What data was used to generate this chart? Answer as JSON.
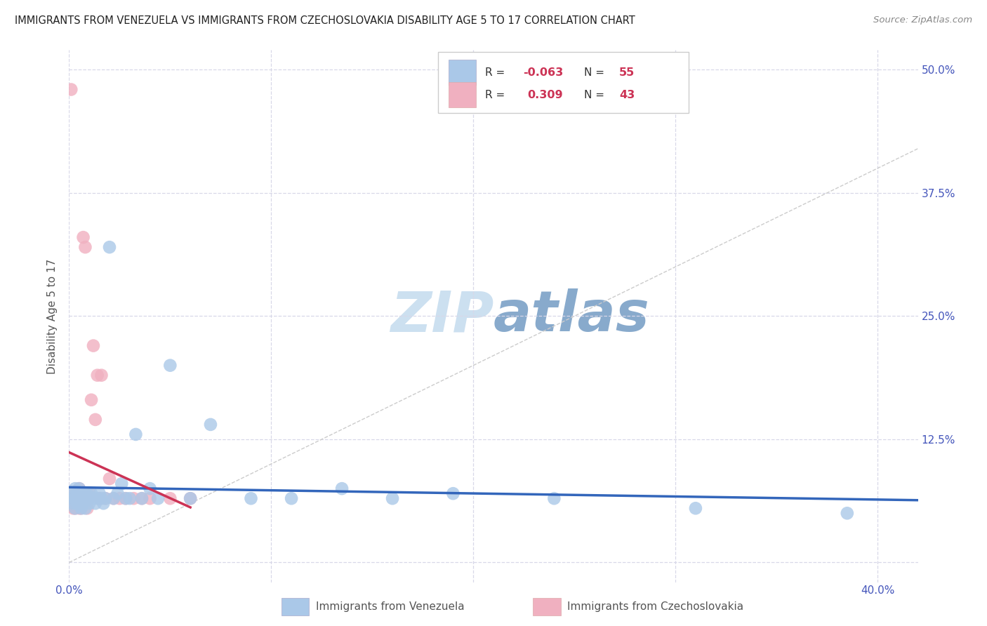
{
  "title": "IMMIGRANTS FROM VENEZUELA VS IMMIGRANTS FROM CZECHOSLOVAKIA DISABILITY AGE 5 TO 17 CORRELATION CHART",
  "source": "Source: ZipAtlas.com",
  "ylabel": "Disability Age 5 to 17",
  "x_ticks": [
    0.0,
    0.1,
    0.2,
    0.3,
    0.4
  ],
  "y_ticks": [
    0.0,
    0.125,
    0.25,
    0.375,
    0.5
  ],
  "right_y_labels": [
    "",
    "12.5%",
    "25.0%",
    "37.5%",
    "50.0%"
  ],
  "bottom_x_labels": [
    "0.0%",
    "",
    "",
    "",
    "40.0%"
  ],
  "xlim": [
    0.0,
    0.42
  ],
  "ylim": [
    -0.02,
    0.52
  ],
  "legend_R1": "-0.063",
  "legend_N1": "55",
  "legend_R2": "0.309",
  "legend_N2": "43",
  "legend_label1": "Immigrants from Venezuela",
  "legend_label2": "Immigrants from Czechoslovakia",
  "color_venezuela": "#aac8e8",
  "color_czechoslovakia": "#f0b0c0",
  "trend_color_venezuela": "#3366bb",
  "trend_color_czechoslovakia": "#cc3355",
  "watermark": "ZIPatlas",
  "watermark_color_zip": "#cce0f0",
  "watermark_color_atlas": "#88aacc",
  "background_color": "#ffffff",
  "grid_color": "#d8d8e8",
  "tick_color": "#4455bb",
  "venezuela_x": [
    0.001,
    0.002,
    0.002,
    0.003,
    0.003,
    0.003,
    0.004,
    0.004,
    0.004,
    0.005,
    0.005,
    0.005,
    0.005,
    0.006,
    0.006,
    0.006,
    0.007,
    0.007,
    0.007,
    0.008,
    0.008,
    0.008,
    0.009,
    0.009,
    0.01,
    0.01,
    0.011,
    0.012,
    0.013,
    0.014,
    0.015,
    0.016,
    0.017,
    0.018,
    0.02,
    0.022,
    0.024,
    0.026,
    0.028,
    0.03,
    0.033,
    0.036,
    0.04,
    0.044,
    0.05,
    0.06,
    0.07,
    0.09,
    0.11,
    0.135,
    0.16,
    0.19,
    0.24,
    0.31,
    0.385
  ],
  "venezuela_y": [
    0.065,
    0.07,
    0.06,
    0.065,
    0.055,
    0.075,
    0.07,
    0.06,
    0.065,
    0.07,
    0.065,
    0.06,
    0.075,
    0.065,
    0.07,
    0.055,
    0.065,
    0.07,
    0.06,
    0.065,
    0.07,
    0.055,
    0.065,
    0.07,
    0.06,
    0.065,
    0.07,
    0.065,
    0.06,
    0.065,
    0.07,
    0.065,
    0.06,
    0.065,
    0.32,
    0.065,
    0.07,
    0.08,
    0.065,
    0.065,
    0.13,
    0.065,
    0.075,
    0.065,
    0.2,
    0.065,
    0.14,
    0.065,
    0.065,
    0.075,
    0.065,
    0.07,
    0.065,
    0.055,
    0.05
  ],
  "czechoslovakia_x": [
    0.001,
    0.001,
    0.002,
    0.002,
    0.002,
    0.003,
    0.003,
    0.003,
    0.004,
    0.004,
    0.004,
    0.005,
    0.005,
    0.005,
    0.005,
    0.006,
    0.006,
    0.006,
    0.007,
    0.007,
    0.007,
    0.008,
    0.008,
    0.009,
    0.009,
    0.01,
    0.01,
    0.011,
    0.012,
    0.013,
    0.014,
    0.015,
    0.016,
    0.018,
    0.02,
    0.022,
    0.025,
    0.028,
    0.032,
    0.036,
    0.04,
    0.05,
    0.06
  ],
  "czechoslovakia_y": [
    0.48,
    0.065,
    0.065,
    0.055,
    0.07,
    0.06,
    0.065,
    0.055,
    0.065,
    0.06,
    0.07,
    0.065,
    0.055,
    0.075,
    0.06,
    0.065,
    0.055,
    0.065,
    0.33,
    0.065,
    0.06,
    0.32,
    0.065,
    0.055,
    0.065,
    0.07,
    0.065,
    0.165,
    0.22,
    0.145,
    0.19,
    0.065,
    0.19,
    0.065,
    0.085,
    0.065,
    0.065,
    0.065,
    0.065,
    0.065,
    0.065,
    0.065,
    0.065
  ]
}
